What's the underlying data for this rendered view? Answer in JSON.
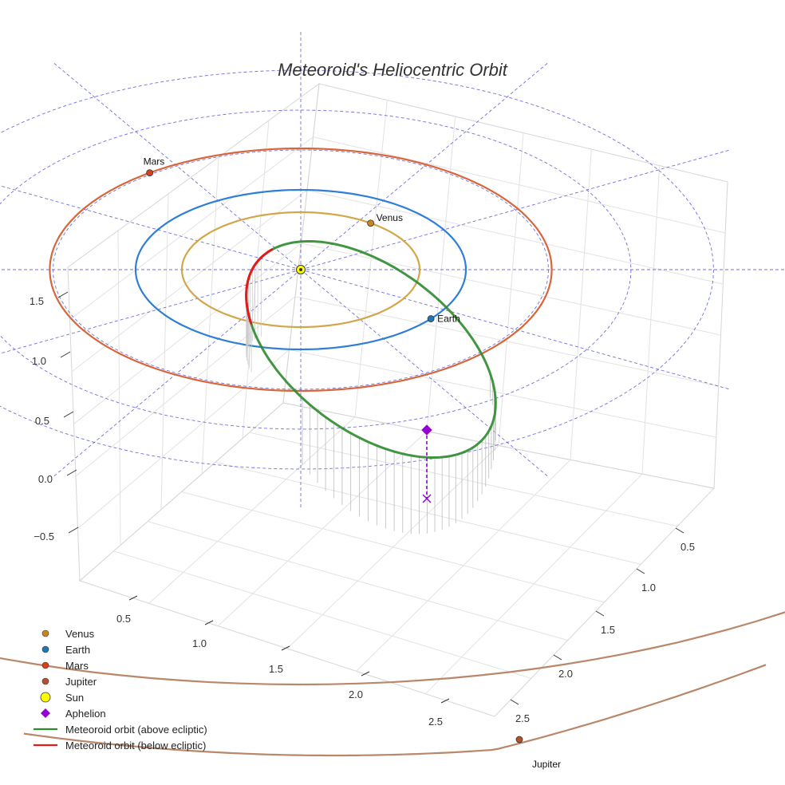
{
  "chart_data": {
    "type": "3d-line",
    "title": "Meteoroid's Heliocentric Orbit",
    "axes": {
      "x_ticks": [
        "0.5",
        "1.0",
        "1.5",
        "2.0",
        "2.5"
      ],
      "y_ticks": [
        "0.5",
        "1.0",
        "1.5",
        "2.0",
        "2.5"
      ],
      "z_ticks": [
        "−0.5",
        "0.0",
        "0.5",
        "1.0",
        "1.5"
      ],
      "xlabel": "",
      "ylabel": "",
      "zlabel": ""
    },
    "bodies": [
      {
        "name": "Venus",
        "label": "Venus",
        "color": "#c8861e",
        "orbit_color": "#d4a64a",
        "radius_au": 0.72
      },
      {
        "name": "Earth",
        "label": "Earth",
        "color": "#1f77b4",
        "orbit_color": "#2f7ed8",
        "radius_au": 1.0
      },
      {
        "name": "Mars",
        "label": "Mars",
        "color": "#d6431a",
        "orbit_color": "#d9653a",
        "radius_au": 1.52
      },
      {
        "name": "Jupiter",
        "label": "Jupiter",
        "color": "#b0532e",
        "orbit_color": "#b9876a",
        "radius_au": 5.2
      }
    ],
    "sun": {
      "name": "Sun",
      "color": "#ffff00"
    },
    "aphelion": {
      "name": "Aphelion",
      "color": "#9400d3"
    },
    "series": [
      {
        "name": "Meteoroid orbit (above ecliptic)",
        "color": "#2e8b2e"
      },
      {
        "name": "Meteoroid orbit (below ecliptic)",
        "color": "#e31a1c"
      }
    ],
    "ecliptic_grid": {
      "rings_au": [
        1.0,
        1.5,
        2.0,
        2.5
      ],
      "radial_lines": 12,
      "color": "#4040d0",
      "style": "dashed"
    },
    "legend": {
      "position": "bottom-left",
      "items": [
        {
          "label": "Venus",
          "kind": "dot",
          "color": "#c8861e"
        },
        {
          "label": "Earth",
          "kind": "dot",
          "color": "#1f77b4"
        },
        {
          "label": "Mars",
          "kind": "dot",
          "color": "#d6431a"
        },
        {
          "label": "Jupiter",
          "kind": "dot",
          "color": "#b0532e"
        },
        {
          "label": "Sun",
          "kind": "bigdot",
          "color": "#ffff00"
        },
        {
          "label": "Aphelion",
          "kind": "diamond",
          "color": "#9400d3"
        },
        {
          "label": "Meteoroid orbit (above ecliptic)",
          "kind": "line",
          "color": "#2e8b2e"
        },
        {
          "label": "Meteoroid orbit (below ecliptic)",
          "kind": "line",
          "color": "#e31a1c"
        }
      ]
    }
  }
}
